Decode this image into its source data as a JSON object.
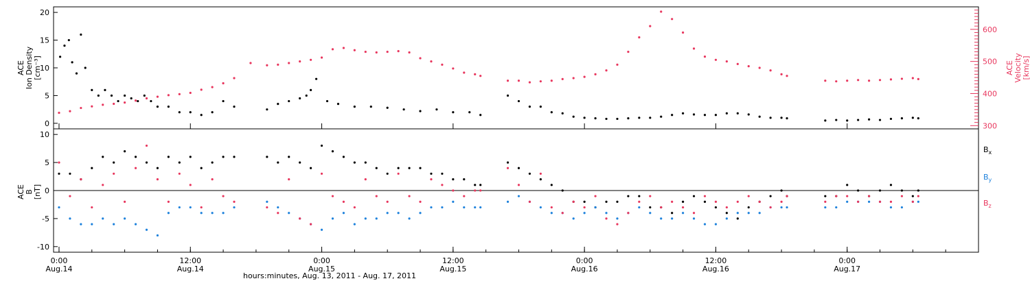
{
  "chart_data": [
    {
      "type": "scatter",
      "panel": "top",
      "left_axis": {
        "label_lines": [
          "ACE",
          "Ion Density",
          "[cm⁻³]"
        ],
        "ylim": [
          -1,
          21
        ],
        "ticks": [
          0,
          5,
          10,
          15,
          20
        ],
        "color": "#000000"
      },
      "right_axis": {
        "label_lines": [
          "ACE",
          "Velocity",
          "[km/s]"
        ],
        "ylim": [
          290,
          670
        ],
        "ticks": [
          300,
          400,
          500,
          600
        ],
        "color": "#e8375e"
      },
      "series": [
        {
          "name": "Ion Density",
          "color": "#000000",
          "axis": "left",
          "x": [
            0.1,
            0.5,
            0.9,
            1.2,
            1.6,
            2.0,
            2.4,
            3.0,
            3.6,
            4.2,
            4.8,
            5.4,
            6.0,
            6.6,
            7.2,
            7.8,
            8.4,
            9.0,
            10.0,
            11.0,
            12.0,
            13.0,
            14.0,
            15.0,
            16.0,
            19.0,
            20.0,
            21.0,
            22.0,
            22.6,
            23.0,
            23.5,
            24.5,
            25.5,
            27,
            28.5,
            30,
            31.5,
            33,
            34.5,
            36,
            37.5,
            38.5,
            41,
            42,
            43,
            44,
            45,
            46,
            47,
            48,
            49,
            50,
            51,
            52,
            53,
            54,
            55,
            56,
            57,
            58,
            59,
            60,
            61,
            62,
            63,
            64,
            65,
            66,
            66.5,
            70,
            71,
            72,
            73,
            74,
            75,
            76,
            77,
            78,
            78.5
          ],
          "values": [
            12,
            14,
            15,
            11,
            9,
            16,
            10,
            6,
            5,
            6,
            5,
            4,
            5,
            4.5,
            4,
            5,
            4,
            3,
            3,
            2,
            2,
            1.5,
            2,
            4,
            3,
            2.5,
            3.5,
            4,
            4.5,
            5,
            6,
            8,
            4,
            3.5,
            3,
            3,
            2.8,
            2.5,
            2.2,
            2.5,
            2,
            2,
            1.5,
            5,
            4,
            3,
            3,
            2,
            1.8,
            1.2,
            1,
            0.9,
            0.8,
            0.8,
            0.9,
            1,
            1,
            1.2,
            1.5,
            1.8,
            1.6,
            1.5,
            1.5,
            1.8,
            1.8,
            1.6,
            1.2,
            1.0,
            1.0,
            0.9,
            0.5,
            0.6,
            0.5,
            0.6,
            0.7,
            0.6,
            0.8,
            0.9,
            1.0,
            0.9
          ]
        },
        {
          "name": "Velocity",
          "color": "#e8375e",
          "axis": "right",
          "x": [
            0,
            1,
            2,
            3,
            4,
            5,
            6,
            7,
            8,
            9,
            10,
            11,
            12,
            13,
            14,
            15,
            16,
            17.5,
            19,
            20,
            21,
            22,
            23,
            24,
            25,
            26,
            27,
            28,
            29,
            30,
            31,
            32,
            33,
            34,
            35,
            36,
            37,
            38,
            38.5,
            41,
            42,
            43,
            44,
            45,
            46,
            47,
            48,
            49,
            50,
            51,
            52,
            53,
            54,
            55,
            56,
            57,
            58,
            59,
            60,
            61,
            62,
            63,
            64,
            65,
            66,
            66.5,
            70,
            71,
            72,
            73,
            74,
            75,
            76,
            77,
            78,
            78.5
          ],
          "values": [
            340,
            345,
            355,
            360,
            365,
            368,
            372,
            378,
            385,
            390,
            395,
            398,
            402,
            412,
            420,
            432,
            448,
            495,
            488,
            490,
            495,
            500,
            505,
            512,
            538,
            542,
            535,
            530,
            528,
            530,
            532,
            528,
            510,
            500,
            490,
            478,
            465,
            460,
            455,
            440,
            440,
            435,
            438,
            440,
            445,
            448,
            452,
            460,
            472,
            490,
            530,
            575,
            610,
            655,
            632,
            590,
            540,
            515,
            505,
            500,
            492,
            485,
            480,
            472,
            460,
            455,
            440,
            438,
            440,
            442,
            440,
            442,
            444,
            446,
            448,
            445
          ]
        }
      ]
    },
    {
      "type": "scatter",
      "panel": "bottom",
      "left_axis": {
        "label_lines": [
          "ACE",
          "B",
          "[nT]"
        ],
        "ylim": [
          -11,
          11
        ],
        "ticks": [
          -10,
          -5,
          0,
          5,
          10
        ]
      },
      "legend": [
        "Bx",
        "By",
        "Bz"
      ],
      "series": [
        {
          "name": "Bx",
          "color": "#000000",
          "x": [
            0,
            1,
            2,
            3,
            4,
            5,
            6,
            7,
            8,
            9,
            10,
            11,
            12,
            13,
            14,
            15,
            16,
            19,
            20,
            21,
            22,
            23,
            24,
            25,
            26,
            27,
            28,
            29,
            30,
            31,
            32,
            33,
            34,
            35,
            36,
            37,
            38,
            38.5,
            41,
            42,
            43,
            44,
            45,
            46,
            47,
            48,
            49,
            50,
            51,
            52,
            53,
            54,
            55,
            56,
            57,
            58,
            59,
            60,
            61,
            62,
            63,
            64,
            65,
            66,
            66.5,
            70,
            71,
            72,
            73,
            74,
            75,
            76,
            77,
            78,
            78.5
          ],
          "values": [
            3,
            3,
            2,
            4,
            6,
            5,
            7,
            6,
            5,
            4,
            6,
            5,
            6,
            4,
            5,
            6,
            6,
            6,
            5,
            6,
            5,
            4,
            8,
            7,
            6,
            5,
            5,
            4,
            3,
            4,
            4,
            4,
            3,
            3,
            2,
            2,
            1,
            1,
            5,
            4,
            3,
            2,
            1,
            0,
            -2,
            -2,
            -3,
            -2,
            -2,
            -1,
            -1,
            -3,
            -3,
            -4,
            -2,
            -1,
            -2,
            -3,
            -4,
            -5,
            -3,
            -2,
            -1,
            0,
            -1,
            -1,
            -1,
            1,
            0,
            -1,
            0,
            1,
            0,
            -1,
            0
          ]
        },
        {
          "name": "By",
          "color": "#1e82dc",
          "x": [
            0,
            1,
            2,
            3,
            4,
            5,
            6,
            7,
            8,
            9,
            10,
            11,
            12,
            13,
            14,
            15,
            16,
            19,
            20,
            21,
            22,
            23,
            24,
            25,
            26,
            27,
            28,
            29,
            30,
            31,
            32,
            33,
            34,
            35,
            36,
            37,
            38,
            38.5,
            41,
            42,
            43,
            44,
            45,
            46,
            47,
            48,
            49,
            50,
            51,
            52,
            53,
            54,
            55,
            56,
            57,
            58,
            59,
            60,
            61,
            62,
            63,
            64,
            65,
            66,
            66.5,
            70,
            71,
            72,
            73,
            74,
            75,
            76,
            77,
            78,
            78.5
          ],
          "values": [
            -3,
            -5,
            -6,
            -6,
            -5,
            -6,
            -5,
            -6,
            -7,
            -8,
            -4,
            -3,
            -3,
            -4,
            -4,
            -4,
            -3,
            -2,
            -3,
            -4,
            -5,
            -6,
            -7,
            -5,
            -4,
            -6,
            -5,
            -5,
            -4,
            -4,
            -5,
            -4,
            -3,
            -3,
            -2,
            -3,
            -3,
            -3,
            -2,
            -1,
            -2,
            -3,
            -4,
            -4,
            -5,
            -4,
            -3,
            -4,
            -5,
            -4,
            -3,
            -4,
            -5,
            -5,
            -4,
            -5,
            -6,
            -6,
            -5,
            -4,
            -4,
            -4,
            -3,
            -3,
            -3,
            -3,
            -3,
            -2,
            -2,
            -2,
            -2,
            -3,
            -3,
            -2,
            -2
          ]
        },
        {
          "name": "Bz",
          "color": "#e8375e",
          "x": [
            0,
            1,
            2,
            3,
            4,
            5,
            6,
            7,
            8,
            9,
            10,
            11,
            12,
            13,
            14,
            15,
            16,
            19,
            20,
            21,
            22,
            23,
            24,
            25,
            26,
            27,
            28,
            29,
            30,
            31,
            32,
            33,
            34,
            35,
            36,
            37,
            38,
            38.5,
            41,
            42,
            43,
            44,
            45,
            46,
            47,
            48,
            49,
            50,
            51,
            52,
            53,
            54,
            55,
            56,
            57,
            58,
            59,
            60,
            61,
            62,
            63,
            64,
            65,
            66,
            66.5,
            70,
            71,
            72,
            73,
            74,
            75,
            76,
            77,
            78,
            78.5
          ],
          "values": [
            5,
            -1,
            2,
            -3,
            1,
            3,
            -2,
            4,
            8,
            2,
            -2,
            3,
            1,
            -3,
            2,
            -1,
            -2,
            -3,
            -4,
            2,
            -5,
            -6,
            3,
            -1,
            -2,
            -3,
            2,
            -1,
            -2,
            3,
            -1,
            -2,
            2,
            1,
            0,
            -1,
            0,
            0,
            4,
            1,
            -2,
            3,
            -3,
            -4,
            -2,
            -3,
            -1,
            -5,
            -6,
            -4,
            -2,
            -1,
            -3,
            -2,
            -3,
            -4,
            -1,
            -2,
            -3,
            -2,
            -1,
            -2,
            -3,
            -2,
            -1,
            -2,
            -1,
            -1,
            -2,
            -1,
            -2,
            -2,
            -1,
            -2,
            -1
          ]
        }
      ]
    }
  ],
  "x_axis": {
    "xlim": [
      -0.5,
      84
    ],
    "ticks": [
      {
        "x": 0,
        "time": "0:00",
        "date": "Aug.14"
      },
      {
        "x": 12,
        "time": "12:00",
        "date": "Aug.14"
      },
      {
        "x": 24,
        "time": "0:00",
        "date": "Aug.15"
      },
      {
        "x": 36,
        "time": "12:00",
        "date": "Aug.15"
      },
      {
        "x": 48,
        "time": "0:00",
        "date": "Aug.16"
      },
      {
        "x": 60,
        "time": "12:00",
        "date": "Aug.16"
      },
      {
        "x": 72,
        "time": "0:00",
        "date": "Aug.17"
      }
    ],
    "label": "hours:minutes, Aug. 13, 2011 - Aug. 17, 2011"
  },
  "legend_labels": {
    "bx": "B",
    "bx_sub": "x",
    "by": "B",
    "by_sub": "y",
    "bz": "B",
    "bz_sub": "z"
  }
}
